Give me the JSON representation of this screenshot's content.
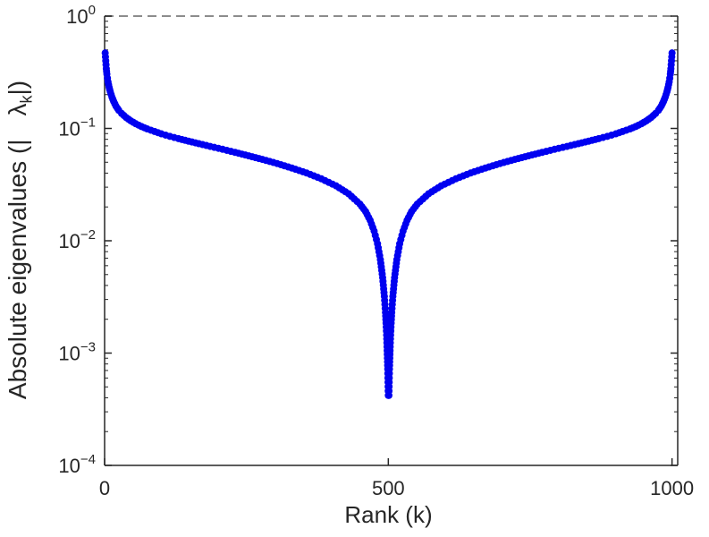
{
  "figure": {
    "xlabel": "Rank (k)",
    "ylabel_prefix": "Absolute eigenvalues (|",
    "ylabel_lambda": "λ",
    "ylabel_lambda_sub": "k",
    "ylabel_suffix": "|)"
  },
  "chart_data": {
    "type": "scatter",
    "title": "",
    "xlabel": "Rank (k)",
    "ylabel": "Absolute eigenvalues (|lambda_k|)",
    "y_scale": "log",
    "grid": "off",
    "legend": "none",
    "xlim": [
      0,
      1010
    ],
    "ylim_log10": [
      -4,
      0
    ],
    "x_ticks": [
      0,
      500,
      1000
    ],
    "y_tick_exponents": [
      0,
      -1,
      -2,
      -3,
      -4
    ],
    "marker": "dot",
    "marker_color": "#0000f0",
    "axis_color": "#262626",
    "reference_line": {
      "y": 1.0,
      "style": "dashed",
      "color": "#8c8c8c"
    },
    "points": [
      [
        1,
        0.47
      ],
      [
        2,
        0.4
      ],
      [
        3,
        0.34
      ],
      [
        4,
        0.305
      ],
      [
        5,
        0.28
      ],
      [
        6,
        0.26
      ],
      [
        8,
        0.232
      ],
      [
        10,
        0.212
      ],
      [
        13,
        0.19
      ],
      [
        16,
        0.174
      ],
      [
        20,
        0.158
      ],
      [
        25,
        0.145
      ],
      [
        30,
        0.136
      ],
      [
        38,
        0.125
      ],
      [
        46,
        0.117
      ],
      [
        55,
        0.11
      ],
      [
        65,
        0.104
      ],
      [
        75,
        0.099
      ],
      [
        88,
        0.094
      ],
      [
        100,
        0.0895
      ],
      [
        115,
        0.085
      ],
      [
        130,
        0.0812
      ],
      [
        148,
        0.077
      ],
      [
        166,
        0.0732
      ],
      [
        186,
        0.0692
      ],
      [
        208,
        0.0652
      ],
      [
        230,
        0.0612
      ],
      [
        254,
        0.057
      ],
      [
        278,
        0.053
      ],
      [
        304,
        0.0487
      ],
      [
        330,
        0.0444
      ],
      [
        356,
        0.0401
      ],
      [
        382,
        0.0356
      ],
      [
        408,
        0.0308
      ],
      [
        430,
        0.0262
      ],
      [
        450,
        0.0212
      ],
      [
        460,
        0.0182
      ],
      [
        468,
        0.0152
      ],
      [
        475,
        0.0122
      ],
      [
        481,
        0.0094
      ],
      [
        486,
        0.0068
      ],
      [
        490,
        0.0047
      ],
      [
        493,
        0.0032
      ],
      [
        495,
        0.0023
      ],
      [
        496,
        0.00185
      ],
      [
        497,
        0.00145
      ],
      [
        498,
        0.00105
      ],
      [
        499,
        0.00072
      ],
      [
        500,
        0.00042
      ],
      [
        501,
        0.00042
      ],
      [
        502,
        0.00072
      ],
      [
        503,
        0.00105
      ],
      [
        504,
        0.00145
      ],
      [
        505,
        0.00185
      ],
      [
        506,
        0.0023
      ],
      [
        508,
        0.0032
      ],
      [
        511,
        0.0047
      ],
      [
        515,
        0.0068
      ],
      [
        520,
        0.0094
      ],
      [
        526,
        0.0122
      ],
      [
        533,
        0.0152
      ],
      [
        541,
        0.0182
      ],
      [
        551,
        0.0212
      ],
      [
        571,
        0.0262
      ],
      [
        593,
        0.0308
      ],
      [
        619,
        0.0356
      ],
      [
        645,
        0.0401
      ],
      [
        671,
        0.0444
      ],
      [
        697,
        0.0487
      ],
      [
        723,
        0.053
      ],
      [
        747,
        0.057
      ],
      [
        771,
        0.0612
      ],
      [
        793,
        0.0652
      ],
      [
        815,
        0.0692
      ],
      [
        835,
        0.0732
      ],
      [
        853,
        0.077
      ],
      [
        871,
        0.0812
      ],
      [
        886,
        0.085
      ],
      [
        901,
        0.0895
      ],
      [
        913,
        0.094
      ],
      [
        926,
        0.099
      ],
      [
        936,
        0.104
      ],
      [
        946,
        0.11
      ],
      [
        955,
        0.117
      ],
      [
        963,
        0.125
      ],
      [
        971,
        0.136
      ],
      [
        976,
        0.145
      ],
      [
        981,
        0.158
      ],
      [
        985,
        0.174
      ],
      [
        988,
        0.19
      ],
      [
        991,
        0.212
      ],
      [
        993,
        0.232
      ],
      [
        995,
        0.26
      ],
      [
        996,
        0.28
      ],
      [
        997,
        0.305
      ],
      [
        998,
        0.34
      ],
      [
        999,
        0.4
      ],
      [
        1000,
        0.47
      ]
    ]
  }
}
